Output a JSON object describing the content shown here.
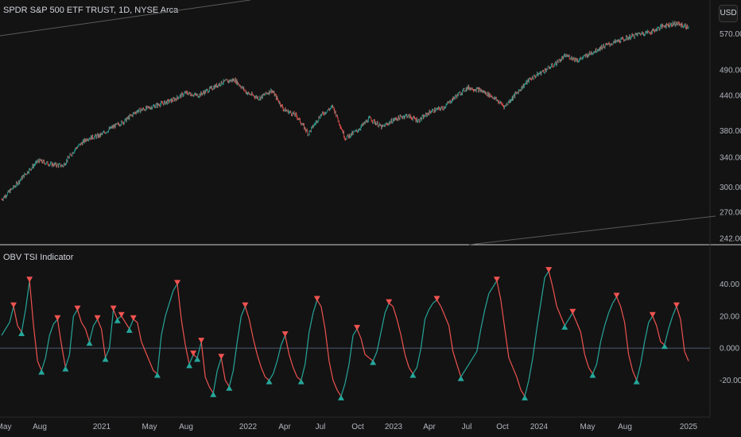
{
  "header": {
    "symbol_title": "SPDR S&P 500 ETF TRUST, 1D, NYSE Arca",
    "currency": "USD",
    "indicator_title": "OBV TSI Indicator"
  },
  "colors": {
    "background": "#131313",
    "up": "#26a69a",
    "down": "#ef5350",
    "zero_line": "#4a5068",
    "separator": "#d1d4dc"
  },
  "chart_data": [
    {
      "type": "candlestick",
      "title": "SPDR S&P 500 ETF TRUST, 1D, NYSE Arca",
      "y_scale": "log",
      "y_ticks": [
        "570.00",
        "490.00",
        "440.00",
        "380.00",
        "340.00",
        "300.00",
        "270.00",
        "242.00"
      ],
      "ylim": [
        242,
        610
      ],
      "x_ticks": [
        "May",
        "Aug",
        "2021",
        "May",
        "Aug",
        "2022",
        "Apr",
        "Jul",
        "Oct",
        "2023",
        "Apr",
        "Jul",
        "Oct",
        "2024",
        "May",
        "Aug",
        "2025"
      ],
      "close_approx": {
        "x": [
          "2020-05",
          "2020-06",
          "2020-07",
          "2020-08",
          "2020-09",
          "2020-10",
          "2020-11",
          "2020-12",
          "2021-01",
          "2021-02",
          "2021-03",
          "2021-04",
          "2021-05",
          "2021-06",
          "2021-07",
          "2021-08",
          "2021-09",
          "2021-10",
          "2021-11",
          "2021-12",
          "2022-01",
          "2022-02",
          "2022-03",
          "2022-04",
          "2022-05",
          "2022-06",
          "2022-07",
          "2022-08",
          "2022-09",
          "2022-10",
          "2022-11",
          "2022-12",
          "2023-01",
          "2023-02",
          "2023-03",
          "2023-04",
          "2023-05",
          "2023-06",
          "2023-07",
          "2023-08",
          "2023-09",
          "2023-10",
          "2023-11",
          "2023-12",
          "2024-01",
          "2024-02",
          "2024-03",
          "2024-04",
          "2024-05",
          "2024-06",
          "2024-07",
          "2024-08",
          "2024-09",
          "2024-10",
          "2024-11",
          "2024-12",
          "2025-01"
        ],
        "y": [
          285,
          300,
          318,
          335,
          330,
          328,
          352,
          368,
          372,
          385,
          395,
          412,
          418,
          425,
          432,
          445,
          440,
          452,
          465,
          470,
          445,
          435,
          450,
          415,
          405,
          375,
          405,
          420,
          368,
          380,
          400,
          385,
          398,
          405,
          396,
          412,
          418,
          438,
          455,
          450,
          438,
          420,
          445,
          470,
          485,
          500,
          520,
          510,
          525,
          540,
          550,
          560,
          570,
          575,
          590,
          595,
          585
        ]
      },
      "trend_lines": 2
    },
    {
      "type": "line",
      "title": "OBV TSI Indicator",
      "y_ticks": [
        "40.00",
        "20.00",
        "0.000",
        "-20.00"
      ],
      "ylim": [
        -38,
        56
      ],
      "zero_line": 0,
      "series": [
        {
          "values": [
            8,
            12,
            16,
            26,
            14,
            10,
            24,
            42,
            14,
            -8,
            -14,
            -6,
            8,
            15,
            18,
            2,
            -12,
            -4,
            20,
            24,
            16,
            12,
            4,
            14,
            18,
            12,
            -6,
            0,
            24,
            18,
            20,
            16,
            12,
            18,
            16,
            4,
            -2,
            -8,
            -14,
            -16,
            8,
            20,
            28,
            36,
            40,
            18,
            2,
            -10,
            -4,
            -6,
            4,
            -18,
            -24,
            -28,
            -14,
            -6,
            -20,
            -24,
            -14,
            4,
            20,
            26,
            18,
            6,
            -4,
            -12,
            -18,
            -20,
            -16,
            -8,
            2,
            8,
            -4,
            -12,
            -18,
            -20,
            -10,
            10,
            22,
            30,
            26,
            12,
            -8,
            -20,
            -26,
            -30,
            -22,
            -10,
            8,
            12,
            6,
            -4,
            -6,
            -8,
            -2,
            10,
            22,
            28,
            26,
            18,
            8,
            -4,
            -12,
            -16,
            -12,
            0,
            18,
            24,
            28,
            30,
            26,
            20,
            14,
            -2,
            -10,
            -18,
            -14,
            -10,
            -6,
            -2,
            12,
            24,
            34,
            38,
            42,
            30,
            12,
            -6,
            -12,
            -18,
            -26,
            -30,
            -20,
            -6,
            12,
            28,
            44,
            48,
            38,
            26,
            20,
            14,
            18,
            22,
            16,
            10,
            -4,
            -12,
            -16,
            -10,
            4,
            14,
            22,
            28,
            32,
            26,
            16,
            -4,
            -14,
            -20,
            -10,
            4,
            16,
            20,
            14,
            4,
            2,
            12,
            20,
            26,
            18,
            -2,
            -8
          ],
          "signals": {
            "buy_markers": 48,
            "sell_markers": 47
          }
        }
      ]
    }
  ],
  "indicator_title_text": "OBV TSI Indicator"
}
